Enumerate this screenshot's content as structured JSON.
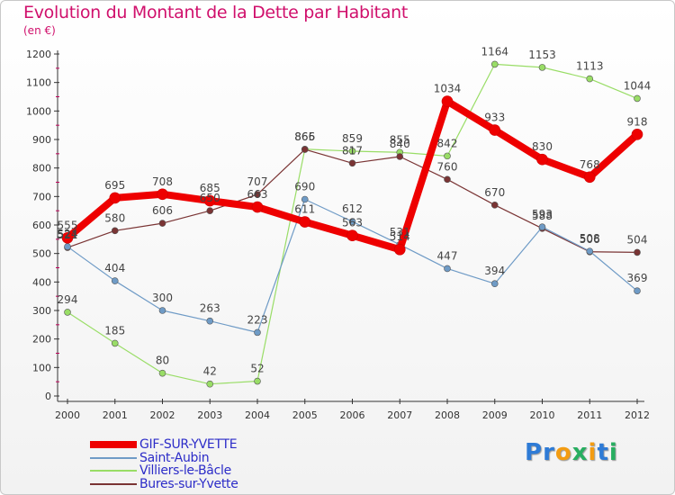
{
  "title": "Evolution du Montant de la Dette par Habitant",
  "subtitle": "(en €)",
  "brand": {
    "text": "Proxiti",
    "letters": [
      "P",
      "r",
      "o",
      "x",
      "i",
      "t",
      "i"
    ],
    "colors": [
      "#2e7bd6",
      "#2e7bd6",
      "#f39c12",
      "#27ae60",
      "#f39c12",
      "#2e7bd6",
      "#27ae60"
    ]
  },
  "chart_data": {
    "type": "line",
    "x": [
      "2000",
      "2001",
      "2002",
      "2003",
      "2004",
      "2005",
      "2006",
      "2007",
      "2008",
      "2009",
      "2010",
      "2011",
      "2012"
    ],
    "ylim": [
      0,
      1200
    ],
    "yticks": [
      "0",
      "100",
      "200",
      "300",
      "400",
      "500",
      "600",
      "700",
      "800",
      "900",
      "1000",
      "1100",
      "1200"
    ],
    "grid": false,
    "legend_position": "bottom-left",
    "series": [
      {
        "name": "GIF-SUR-YVETTE",
        "color": "#ee0000",
        "lineWidth": 8,
        "markerRadius": 6,
        "values": [
          555,
          695,
          708,
          685,
          663,
          611,
          563,
          514,
          1034,
          933,
          830,
          768,
          918
        ],
        "labels": [
          "555",
          "695",
          "708",
          "685",
          "663",
          "611",
          "563",
          "514",
          "1034",
          "933",
          "830",
          "768",
          "918"
        ]
      },
      {
        "name": "Saint-Aubin",
        "color": "#6f9bc6",
        "lineWidth": 1.2,
        "markerRadius": 3.5,
        "values": [
          524,
          404,
          300,
          263,
          223,
          690,
          612,
          531,
          447,
          394,
          593,
          508,
          369
        ],
        "labels": [
          "524",
          "404",
          "300",
          "263",
          "223",
          "690",
          "612",
          "531",
          "447",
          "394",
          "593",
          "508",
          "369"
        ]
      },
      {
        "name": "Villiers-le-Bâcle",
        "color": "#99dd66",
        "lineWidth": 1.2,
        "markerRadius": 3.5,
        "values": [
          294,
          185,
          80,
          42,
          52,
          866,
          859,
          855,
          842,
          1164,
          1153,
          1113,
          1044
        ],
        "labels": [
          "294",
          "185",
          "80",
          "42",
          "52",
          "866",
          "859",
          "855",
          "842",
          "1164",
          "1153",
          "1113",
          "1044"
        ]
      },
      {
        "name": "Bures-sur-Yvette",
        "color": "#7a3434",
        "lineWidth": 1.2,
        "markerRadius": 3.5,
        "values": [
          521,
          580,
          606,
          650,
          707,
          865,
          817,
          840,
          760,
          670,
          588,
          506,
          504
        ],
        "labels": [
          "521",
          "580",
          "606",
          "650",
          "707",
          "865",
          "817",
          "840",
          "760",
          "670",
          "588",
          "506",
          "504"
        ]
      }
    ]
  }
}
